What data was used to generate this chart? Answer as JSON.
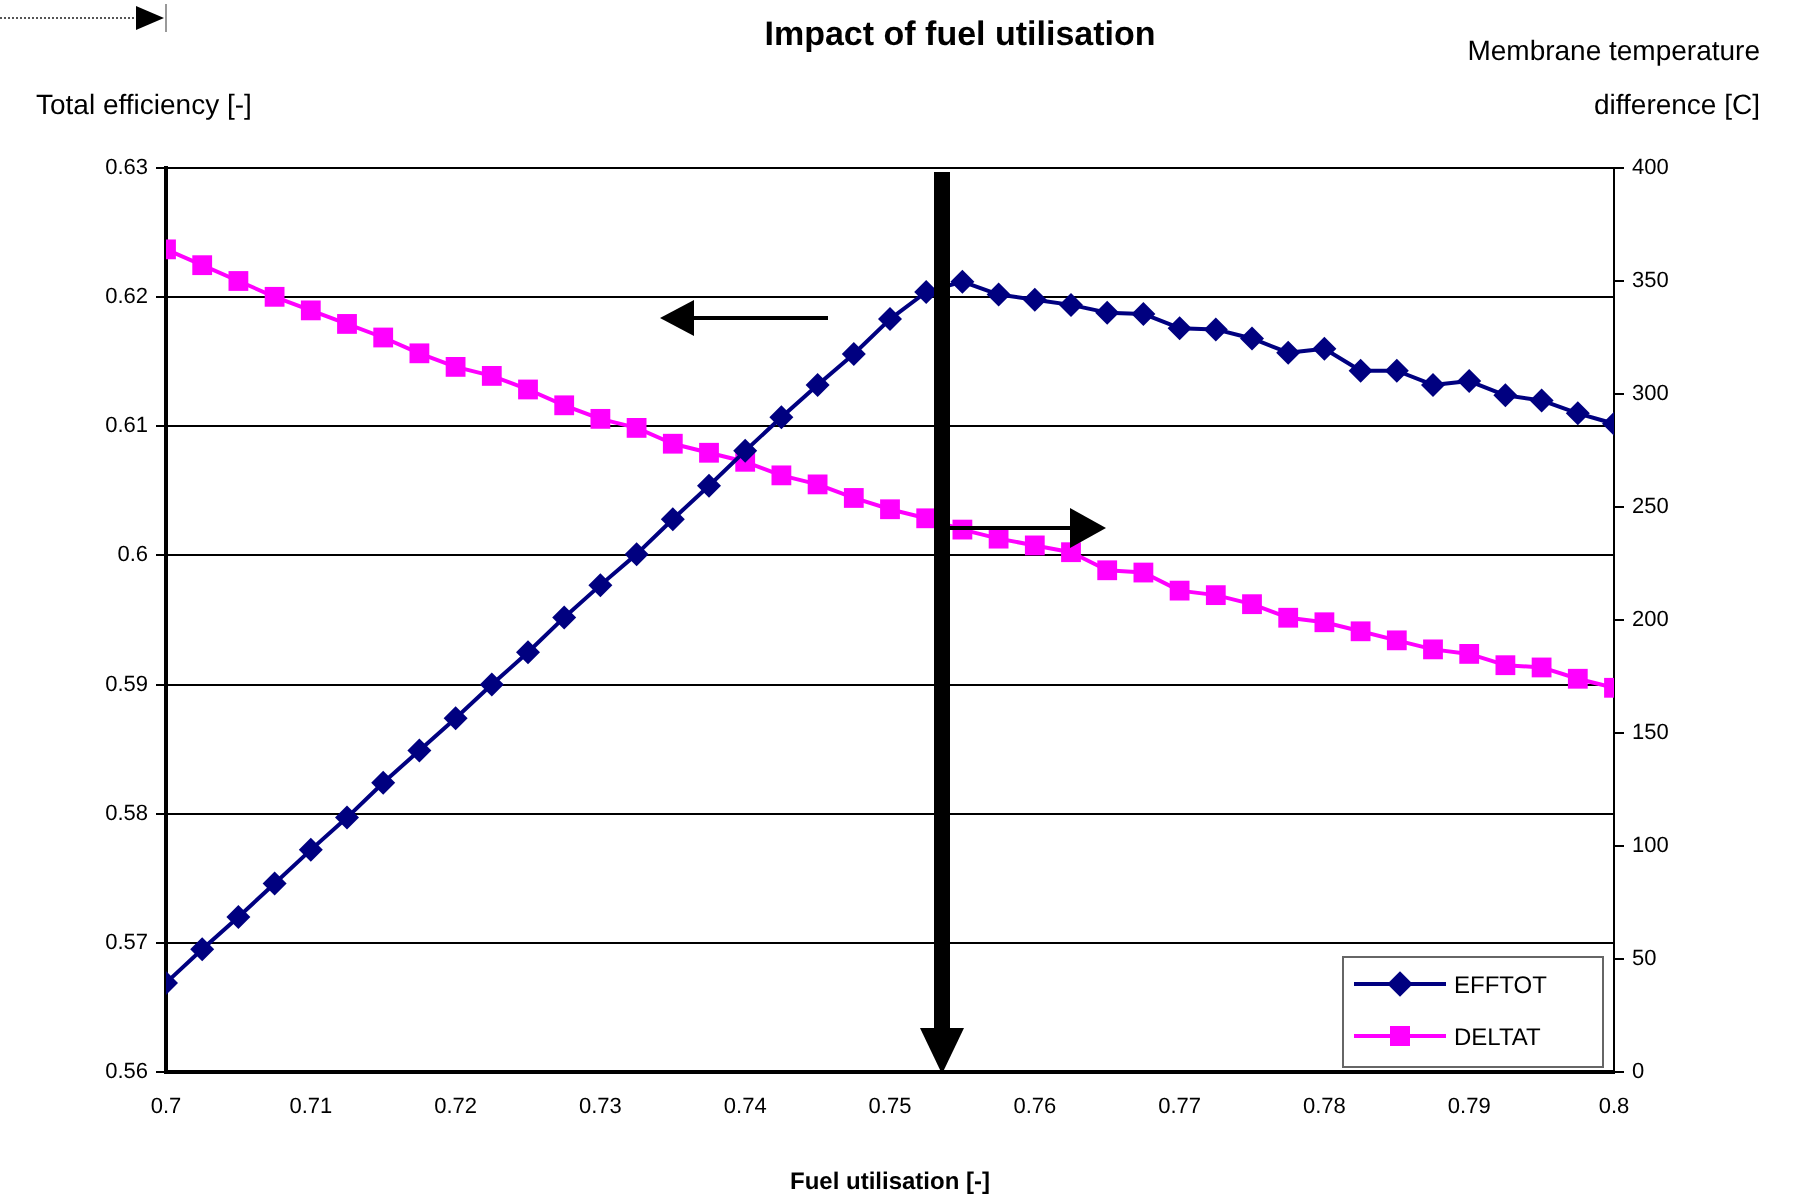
{
  "chart_data": {
    "type": "line",
    "title": "Impact of fuel utilisation",
    "xlabel": "Fuel utilisation [-]",
    "ylabel": "Total efficiency [-]",
    "y2label": "Membrane temperature difference [C]",
    "x": [
      0.7,
      0.7025,
      0.705,
      0.7075,
      0.71,
      0.7125,
      0.715,
      0.7175,
      0.72,
      0.7225,
      0.725,
      0.7275,
      0.73,
      0.7325,
      0.735,
      0.7375,
      0.74,
      0.7425,
      0.745,
      0.7475,
      0.75,
      0.7525,
      0.755,
      0.7575,
      0.76,
      0.7625,
      0.765,
      0.7675,
      0.77,
      0.7725,
      0.775,
      0.7775,
      0.78,
      0.7825,
      0.785,
      0.7875,
      0.79,
      0.7925,
      0.795,
      0.7975,
      0.8
    ],
    "series": [
      {
        "name": "EFFTOT",
        "color": "#000080",
        "marker": "diamond",
        "values": [
          0.5669,
          0.5695,
          0.572,
          0.5746,
          0.5772,
          0.5797,
          0.5824,
          0.5849,
          0.5874,
          0.59,
          0.5925,
          0.5952,
          0.5977,
          0.6001,
          0.6028,
          0.6054,
          0.6081,
          0.6107,
          0.6132,
          0.6156,
          0.6183,
          0.6204,
          0.6212,
          0.6202,
          0.6198,
          0.6194,
          0.6188,
          0.6187,
          0.6176,
          0.6175,
          0.6168,
          0.6157,
          0.616,
          0.6143,
          0.6143,
          0.6132,
          0.6135,
          0.6124,
          0.612,
          0.611,
          0.6102
        ]
      },
      {
        "name": "DELTAT",
        "color": "#ff00ff",
        "marker": "square",
        "axis": "y2",
        "values": [
          364,
          357,
          350,
          343,
          337,
          331,
          325,
          318,
          312,
          308,
          302,
          295,
          289,
          285,
          278,
          274,
          270,
          264,
          260,
          254,
          249,
          245,
          240,
          236,
          233,
          230,
          222,
          221,
          213,
          211,
          207,
          201,
          199,
          195,
          191,
          187,
          185,
          180,
          179,
          174,
          170
        ]
      }
    ],
    "xlim": [
      0.7,
      0.8
    ],
    "xticks": [
      0.7,
      0.71,
      0.72,
      0.73,
      0.74,
      0.75,
      0.76,
      0.77,
      0.78,
      0.79,
      0.8
    ],
    "ylim": [
      0.56,
      0.63
    ],
    "yticks": [
      0.56,
      0.57,
      0.58,
      0.59,
      0.6,
      0.61,
      0.62,
      0.63
    ],
    "y2lim": [
      0,
      400
    ],
    "y2ticks": [
      0,
      50,
      100,
      150,
      200,
      250,
      300,
      350,
      400
    ],
    "grid": "y",
    "legend": "bottom right",
    "line_style": "solid"
  }
}
